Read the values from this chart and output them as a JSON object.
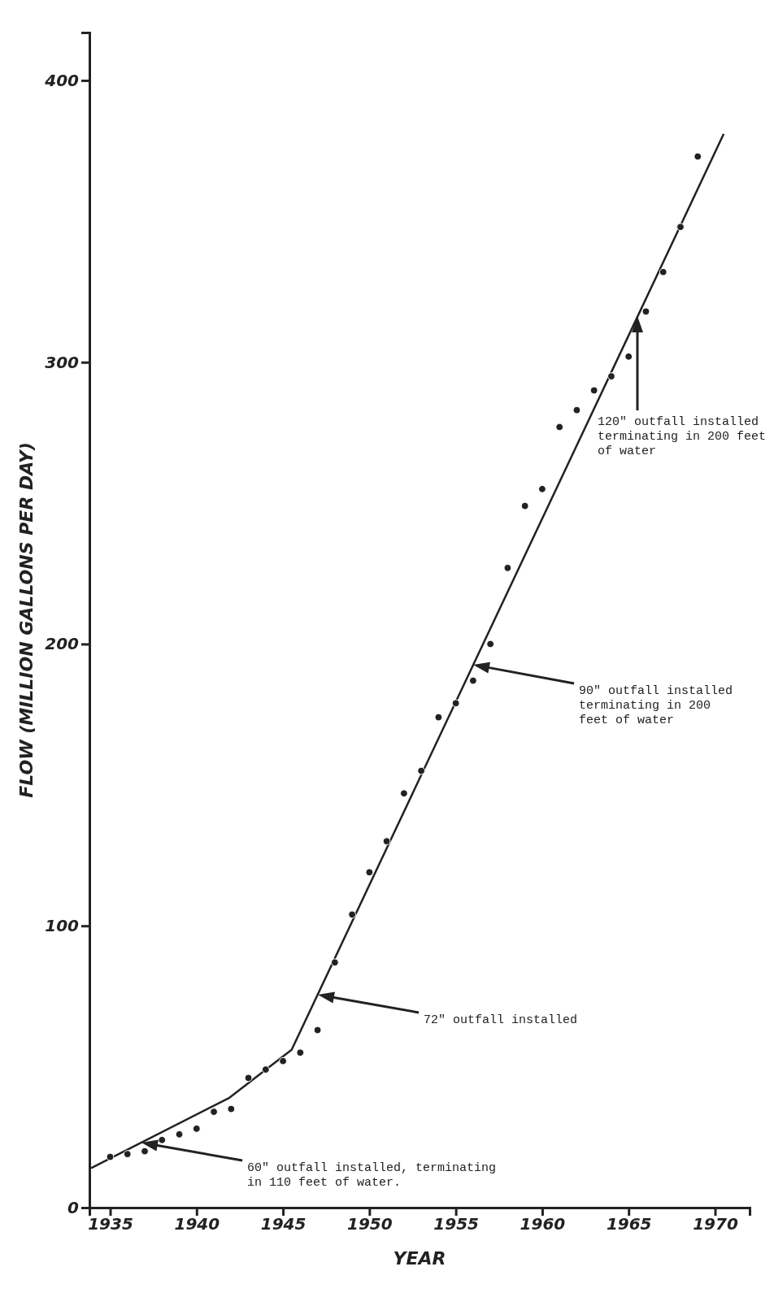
{
  "chart_data": {
    "type": "scatter",
    "xlabel": "YEAR",
    "ylabel": "FLOW (MILLION GALLONS PER DAY)",
    "xlim": [
      1933.8,
      1972
    ],
    "xticks": [
      1935,
      1940,
      1945,
      1950,
      1955,
      1960,
      1965,
      1970
    ],
    "ylim": [
      0,
      417
    ],
    "yticks": [
      0,
      100,
      200,
      300,
      400
    ],
    "grid": false,
    "line_style": "solid",
    "series": [
      {
        "marker": "circle",
        "color": "#222222",
        "x": [
          1935,
          1936,
          1937,
          1938,
          1939,
          1940,
          1941,
          1942,
          1943,
          1944,
          1945,
          1946,
          1947,
          1948,
          1949,
          1950,
          1951,
          1952,
          1953,
          1954,
          1955,
          1956,
          1957,
          1958,
          1959,
          1960,
          1961,
          1962,
          1963,
          1964,
          1965,
          1966,
          1967,
          1968,
          1969
        ],
        "values": [
          18,
          19,
          20,
          24,
          26,
          28,
          34,
          35,
          46,
          49,
          52,
          55,
          63,
          87,
          104,
          119,
          130,
          147,
          155,
          174,
          179,
          187,
          200,
          227,
          249,
          255,
          277,
          283,
          290,
          295,
          302,
          318,
          332,
          348,
          373
        ]
      },
      {
        "type": "line",
        "marker": "none",
        "color": "#222222",
        "x": [
          1933.9,
          1941.9,
          1945.5,
          1970.5
        ],
        "values": [
          14,
          39,
          56,
          381
        ]
      }
    ],
    "annotations": [
      "60\" outfall installed, terminating\nin 110 feet of water.",
      "72\" outfall installed",
      "90\" outfall installed\nterminating in 200\nfeet of water",
      "120\" outfall installed\nterminating in 200 feet\nof water"
    ]
  }
}
